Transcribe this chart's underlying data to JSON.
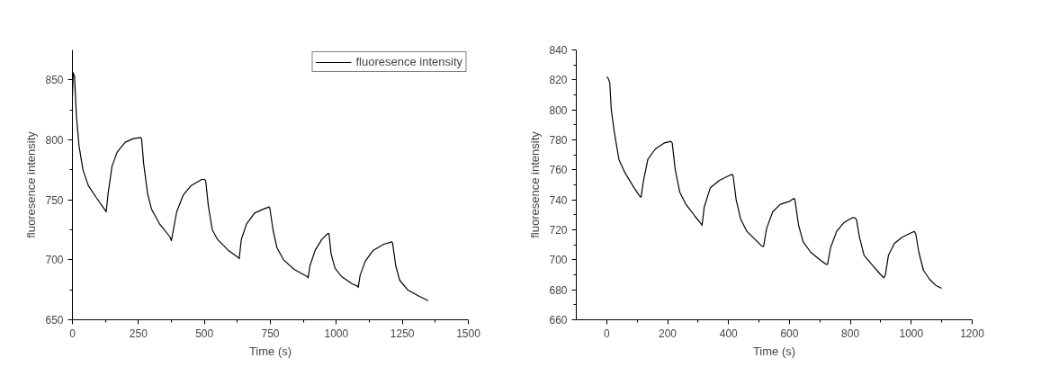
{
  "chart_data": [
    {
      "type": "line",
      "xlabel": "Time (s)",
      "ylabel": "fluoresence intensity",
      "xlim": [
        0,
        1500
      ],
      "ylim": [
        650,
        875
      ],
      "xticks": [
        0,
        250,
        500,
        750,
        1000,
        1250,
        1500
      ],
      "yticks": [
        650,
        700,
        750,
        800,
        850
      ],
      "grid": false,
      "legend": "top right",
      "line_style": "solid",
      "series": [
        {
          "name": "fluoresence intensity",
          "color": "#000000",
          "x": [
            0,
            3,
            8,
            15,
            25,
            40,
            60,
            90,
            125,
            128,
            135,
            150,
            170,
            200,
            230,
            258,
            262,
            270,
            285,
            300,
            330,
            370,
            375,
            380,
            395,
            420,
            450,
            490,
            500,
            505,
            515,
            530,
            550,
            590,
            628,
            632,
            640,
            660,
            690,
            720,
            745,
            748,
            760,
            775,
            800,
            840,
            890,
            893,
            900,
            920,
            945,
            968,
            972,
            980,
            995,
            1020,
            1060,
            1080,
            1083,
            1090,
            1110,
            1140,
            1180,
            1210,
            1213,
            1225,
            1240,
            1270,
            1310,
            1348
          ],
          "values": [
            835,
            856,
            853,
            820,
            795,
            775,
            762,
            752,
            741,
            740,
            755,
            778,
            790,
            798,
            801,
            802,
            801,
            780,
            755,
            742,
            730,
            719,
            716,
            722,
            740,
            754,
            762,
            767,
            767,
            766,
            745,
            725,
            717,
            708,
            702,
            701,
            717,
            730,
            739,
            742,
            744,
            743,
            725,
            710,
            700,
            692,
            686,
            685,
            695,
            708,
            717,
            722,
            722,
            705,
            693,
            686,
            680,
            678,
            677,
            687,
            699,
            708,
            713,
            715,
            714,
            695,
            683,
            675,
            670,
            666
          ]
        }
      ]
    },
    {
      "type": "line",
      "xlabel": "Time (s)",
      "ylabel": "fluoresence intensity",
      "xlim": [
        -100,
        1200
      ],
      "ylim": [
        660,
        840
      ],
      "xticks": [
        0,
        200,
        400,
        600,
        800,
        1000,
        1200
      ],
      "yticks": [
        660,
        680,
        700,
        720,
        740,
        760,
        780,
        800,
        820,
        840
      ],
      "grid": false,
      "line_style": "solid",
      "series": [
        {
          "color": "#000000",
          "x": [
            0,
            5,
            10,
            15,
            25,
            40,
            60,
            90,
            110,
            113,
            120,
            135,
            160,
            190,
            210,
            215,
            225,
            240,
            260,
            290,
            310,
            313,
            320,
            340,
            370,
            400,
            412,
            415,
            425,
            440,
            460,
            490,
            510,
            515,
            525,
            545,
            570,
            600,
            615,
            618,
            630,
            645,
            670,
            700,
            720,
            725,
            735,
            755,
            780,
            805,
            815,
            820,
            830,
            845,
            870,
            900,
            910,
            915,
            925,
            945,
            970,
            1000,
            1010,
            1015,
            1025,
            1040,
            1060,
            1080,
            1100
          ],
          "values": [
            822,
            821,
            818,
            800,
            785,
            767,
            758,
            748,
            742,
            742,
            752,
            767,
            774,
            778,
            779,
            778,
            760,
            745,
            737,
            729,
            724,
            723,
            735,
            748,
            753,
            756,
            757,
            756,
            740,
            727,
            719,
            713,
            709,
            709,
            721,
            732,
            737,
            739,
            741,
            740,
            723,
            712,
            705,
            700,
            697,
            697,
            708,
            719,
            725,
            728,
            728,
            727,
            715,
            703,
            697,
            690,
            688,
            690,
            703,
            711,
            715,
            718,
            719,
            717,
            705,
            693,
            687,
            683,
            681
          ]
        }
      ]
    }
  ]
}
